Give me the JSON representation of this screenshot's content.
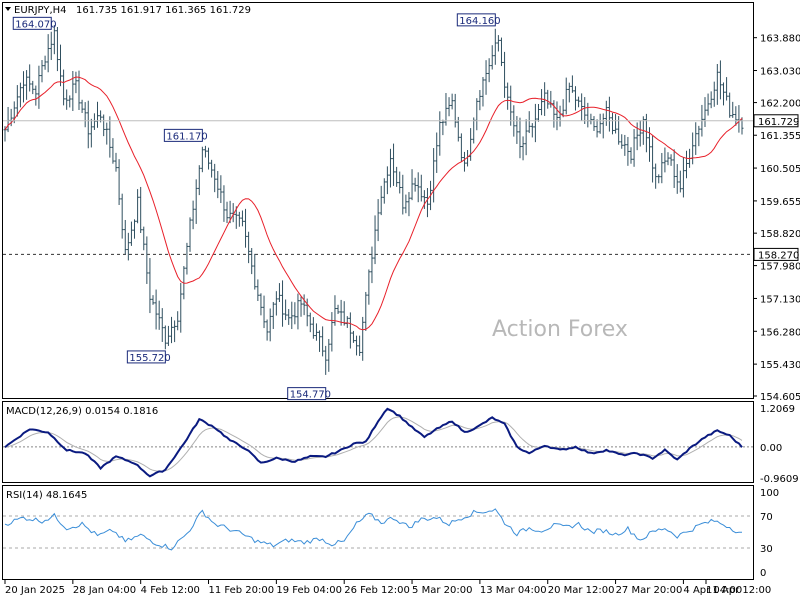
{
  "header": {
    "symbol_text": "EURJPY,H4",
    "ohlc_text": "161.735 161.917 161.365 161.729"
  },
  "watermark": "Action Forex",
  "colors": {
    "price": "#2f4f5f",
    "ma": "#e8202a",
    "macd": "#0a1a80",
    "signal": "#b0b0b0",
    "rsi": "#3b8ed8",
    "label_border": "#1a2a7a",
    "grid_text": "#000000"
  },
  "chart_data": [
    {
      "id": "price",
      "type": "bar",
      "title": "EURJPY,H4",
      "ylim": [
        154.605,
        164.7
      ],
      "y_ticks": [
        "163.880",
        "163.030",
        "162.200",
        "161.355",
        "160.505",
        "159.655",
        "158.820",
        "157.980",
        "157.130",
        "156.280",
        "155.430",
        "154.605"
      ],
      "current_price": "161.729",
      "hline_value": "158.270",
      "swing_labels": [
        {
          "text": "164.070",
          "value": 164.07
        },
        {
          "text": "161.170",
          "value": 161.17
        },
        {
          "text": "155.720",
          "value": 155.72
        },
        {
          "text": "154.770",
          "value": 154.77
        },
        {
          "text": "164.160",
          "value": 164.16
        }
      ],
      "anchors": [
        {
          "t": 0,
          "v": 161.5
        },
        {
          "t": 6,
          "v": 162.8
        },
        {
          "t": 10,
          "v": 162.5
        },
        {
          "t": 13,
          "v": 163.4
        },
        {
          "t": 16,
          "v": 164.0
        },
        {
          "t": 19,
          "v": 162.3
        },
        {
          "t": 23,
          "v": 162.6
        },
        {
          "t": 27,
          "v": 161.5
        },
        {
          "t": 31,
          "v": 161.9
        },
        {
          "t": 36,
          "v": 160.5
        },
        {
          "t": 39,
          "v": 158.3
        },
        {
          "t": 43,
          "v": 159.6
        },
        {
          "t": 47,
          "v": 157.2
        },
        {
          "t": 52,
          "v": 156.1
        },
        {
          "t": 56,
          "v": 156.7
        },
        {
          "t": 60,
          "v": 159.0
        },
        {
          "t": 64,
          "v": 161.0
        },
        {
          "t": 68,
          "v": 160.3
        },
        {
          "t": 72,
          "v": 159.3
        },
        {
          "t": 77,
          "v": 159.0
        },
        {
          "t": 81,
          "v": 157.6
        },
        {
          "t": 85,
          "v": 156.3
        },
        {
          "t": 88,
          "v": 157.2
        },
        {
          "t": 92,
          "v": 156.6
        },
        {
          "t": 96,
          "v": 157.0
        },
        {
          "t": 100,
          "v": 156.3
        },
        {
          "t": 104,
          "v": 155.7
        },
        {
          "t": 107,
          "v": 156.8
        },
        {
          "t": 111,
          "v": 156.5
        },
        {
          "t": 115,
          "v": 155.9
        },
        {
          "t": 118,
          "v": 157.7
        },
        {
          "t": 121,
          "v": 159.5
        },
        {
          "t": 125,
          "v": 160.8
        },
        {
          "t": 129,
          "v": 159.6
        },
        {
          "t": 133,
          "v": 160.2
        },
        {
          "t": 137,
          "v": 159.6
        },
        {
          "t": 141,
          "v": 161.6
        },
        {
          "t": 145,
          "v": 162.2
        },
        {
          "t": 149,
          "v": 160.5
        },
        {
          "t": 153,
          "v": 162.3
        },
        {
          "t": 157,
          "v": 163.2
        },
        {
          "t": 160,
          "v": 163.8
        },
        {
          "t": 163,
          "v": 162.2
        },
        {
          "t": 167,
          "v": 161.0
        },
        {
          "t": 171,
          "v": 161.6
        },
        {
          "t": 175,
          "v": 162.3
        },
        {
          "t": 179,
          "v": 161.7
        },
        {
          "t": 183,
          "v": 162.6
        },
        {
          "t": 187,
          "v": 162.0
        },
        {
          "t": 191,
          "v": 161.5
        },
        {
          "t": 195,
          "v": 161.9
        },
        {
          "t": 199,
          "v": 161.3
        },
        {
          "t": 203,
          "v": 160.9
        },
        {
          "t": 207,
          "v": 161.8
        },
        {
          "t": 211,
          "v": 160.2
        },
        {
          "t": 215,
          "v": 160.8
        },
        {
          "t": 219,
          "v": 160.0
        },
        {
          "t": 223,
          "v": 161.2
        },
        {
          "t": 227,
          "v": 162.0
        },
        {
          "t": 231,
          "v": 162.9
        },
        {
          "t": 235,
          "v": 162.0
        },
        {
          "t": 239,
          "v": 161.7
        }
      ]
    },
    {
      "id": "macd",
      "type": "line",
      "title": "MACD(12,26,9) 0.0154 0.1816",
      "ylim": [
        -0.96,
        1.2
      ],
      "y_ticks": [
        "1.2069",
        "0.00",
        "-0.9609"
      ],
      "anchors": [
        {
          "t": 0,
          "v": 0.0
        },
        {
          "t": 8,
          "v": 0.55
        },
        {
          "t": 14,
          "v": 0.45
        },
        {
          "t": 20,
          "v": -0.1
        },
        {
          "t": 26,
          "v": -0.2
        },
        {
          "t": 31,
          "v": -0.65
        },
        {
          "t": 36,
          "v": -0.3
        },
        {
          "t": 42,
          "v": -0.5
        },
        {
          "t": 47,
          "v": -0.9
        },
        {
          "t": 52,
          "v": -0.7
        },
        {
          "t": 58,
          "v": 0.1
        },
        {
          "t": 63,
          "v": 0.85
        },
        {
          "t": 68,
          "v": 0.6
        },
        {
          "t": 73,
          "v": 0.2
        },
        {
          "t": 78,
          "v": -0.05
        },
        {
          "t": 83,
          "v": -0.5
        },
        {
          "t": 88,
          "v": -0.35
        },
        {
          "t": 94,
          "v": -0.45
        },
        {
          "t": 99,
          "v": -0.3
        },
        {
          "t": 104,
          "v": -0.3
        },
        {
          "t": 109,
          "v": -0.1
        },
        {
          "t": 113,
          "v": 0.1
        },
        {
          "t": 117,
          "v": 0.15
        },
        {
          "t": 121,
          "v": 0.8
        },
        {
          "t": 124,
          "v": 1.2
        },
        {
          "t": 128,
          "v": 0.95
        },
        {
          "t": 132,
          "v": 0.6
        },
        {
          "t": 136,
          "v": 0.3
        },
        {
          "t": 140,
          "v": 0.55
        },
        {
          "t": 145,
          "v": 0.8
        },
        {
          "t": 149,
          "v": 0.45
        },
        {
          "t": 153,
          "v": 0.6
        },
        {
          "t": 158,
          "v": 0.9
        },
        {
          "t": 162,
          "v": 0.7
        },
        {
          "t": 166,
          "v": 0.0
        },
        {
          "t": 170,
          "v": -0.2
        },
        {
          "t": 175,
          "v": 0.05
        },
        {
          "t": 180,
          "v": -0.1
        },
        {
          "t": 185,
          "v": 0.0
        },
        {
          "t": 190,
          "v": -0.2
        },
        {
          "t": 195,
          "v": -0.1
        },
        {
          "t": 200,
          "v": -0.25
        },
        {
          "t": 205,
          "v": -0.2
        },
        {
          "t": 210,
          "v": -0.35
        },
        {
          "t": 214,
          "v": -0.1
        },
        {
          "t": 218,
          "v": -0.4
        },
        {
          "t": 222,
          "v": -0.05
        },
        {
          "t": 227,
          "v": 0.3
        },
        {
          "t": 231,
          "v": 0.5
        },
        {
          "t": 235,
          "v": 0.35
        },
        {
          "t": 239,
          "v": 0.0
        }
      ]
    },
    {
      "id": "rsi",
      "type": "line",
      "title": "RSI(14) 48.1645",
      "ylim": [
        0,
        100
      ],
      "levels": [
        70,
        30
      ],
      "y_ticks": [
        "100",
        "70",
        "30",
        "0"
      ],
      "anchors": [
        {
          "t": 0,
          "v": 60
        },
        {
          "t": 6,
          "v": 68
        },
        {
          "t": 12,
          "v": 64
        },
        {
          "t": 16,
          "v": 70
        },
        {
          "t": 20,
          "v": 55
        },
        {
          "t": 25,
          "v": 60
        },
        {
          "t": 30,
          "v": 45
        },
        {
          "t": 35,
          "v": 52
        },
        {
          "t": 39,
          "v": 38
        },
        {
          "t": 44,
          "v": 46
        },
        {
          "t": 49,
          "v": 36
        },
        {
          "t": 54,
          "v": 30
        },
        {
          "t": 59,
          "v": 48
        },
        {
          "t": 64,
          "v": 76
        },
        {
          "t": 68,
          "v": 60
        },
        {
          "t": 72,
          "v": 55
        },
        {
          "t": 77,
          "v": 47
        },
        {
          "t": 82,
          "v": 38
        },
        {
          "t": 87,
          "v": 33
        },
        {
          "t": 92,
          "v": 40
        },
        {
          "t": 97,
          "v": 37
        },
        {
          "t": 102,
          "v": 42
        },
        {
          "t": 106,
          "v": 35
        },
        {
          "t": 110,
          "v": 38
        },
        {
          "t": 114,
          "v": 60
        },
        {
          "t": 118,
          "v": 72
        },
        {
          "t": 122,
          "v": 62
        },
        {
          "t": 126,
          "v": 68
        },
        {
          "t": 131,
          "v": 56
        },
        {
          "t": 135,
          "v": 66
        },
        {
          "t": 140,
          "v": 68
        },
        {
          "t": 144,
          "v": 60
        },
        {
          "t": 148,
          "v": 68
        },
        {
          "t": 152,
          "v": 74
        },
        {
          "t": 156,
          "v": 76
        },
        {
          "t": 159,
          "v": 78
        },
        {
          "t": 162,
          "v": 62
        },
        {
          "t": 166,
          "v": 48
        },
        {
          "t": 170,
          "v": 55
        },
        {
          "t": 174,
          "v": 52
        },
        {
          "t": 178,
          "v": 58
        },
        {
          "t": 182,
          "v": 56
        },
        {
          "t": 186,
          "v": 60
        },
        {
          "t": 190,
          "v": 50
        },
        {
          "t": 194,
          "v": 52
        },
        {
          "t": 198,
          "v": 47
        },
        {
          "t": 202,
          "v": 54
        },
        {
          "t": 206,
          "v": 40
        },
        {
          "t": 210,
          "v": 50
        },
        {
          "t": 214,
          "v": 55
        },
        {
          "t": 218,
          "v": 45
        },
        {
          "t": 222,
          "v": 52
        },
        {
          "t": 226,
          "v": 60
        },
        {
          "t": 230,
          "v": 64
        },
        {
          "t": 234,
          "v": 58
        },
        {
          "t": 239,
          "v": 48
        }
      ]
    }
  ],
  "x_axis_labels": [
    {
      "text": "20 Jan 2025",
      "t": 0
    },
    {
      "text": "28 Jan 04:00",
      "t": 22
    },
    {
      "text": "4 Feb 12:00",
      "t": 44
    },
    {
      "text": "11 Feb 20:00",
      "t": 66
    },
    {
      "text": "19 Feb 04:00",
      "t": 88
    },
    {
      "text": "26 Feb 12:00",
      "t": 110
    },
    {
      "text": "5 Mar 20:00",
      "t": 132
    },
    {
      "text": "13 Mar 04:00",
      "t": 154
    },
    {
      "text": "20 Mar 12:00",
      "t": 176
    },
    {
      "text": "27 Mar 20:00",
      "t": 198
    },
    {
      "text": "4 Apr 04:00",
      "t": 220
    },
    {
      "text": "11 Apr 12:00",
      "t": 242
    }
  ]
}
